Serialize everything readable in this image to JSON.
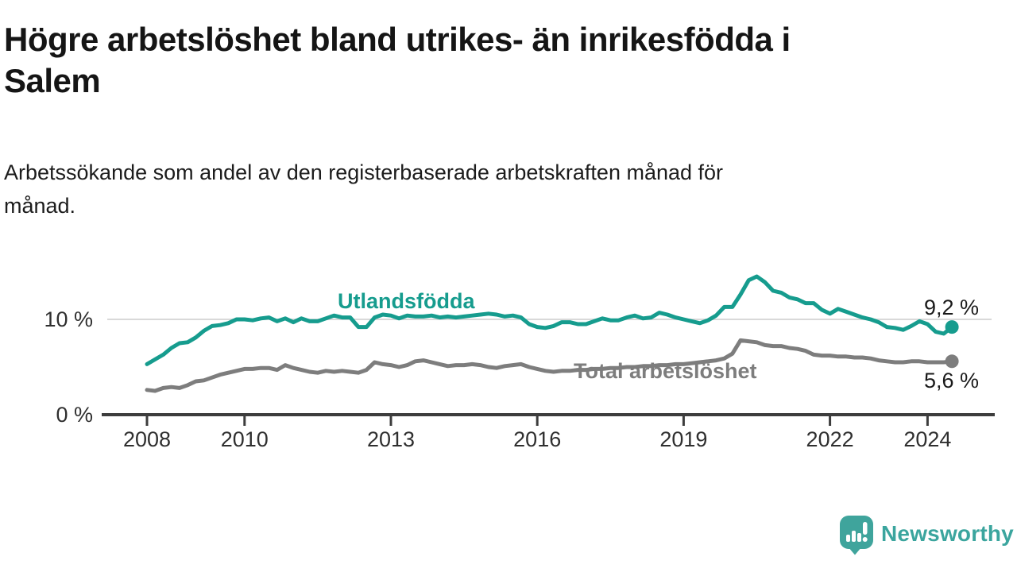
{
  "chart_data": {
    "type": "line",
    "title": "Högre arbetslöshet bland utrikes- än inrikesfödda i Salem",
    "title_lines": [
      "Högre arbetslöshet bland utrikes- än inrikesfödda i",
      "Salem"
    ],
    "subtitle": "Arbetssökande som andel av den registerbaserade arbetskraften månad för månad.",
    "subtitle_lines": [
      "Arbetssökande som andel av den registerbaserade arbetskraften månad för",
      "månad."
    ],
    "x_start_year": 2008.0,
    "x_step_years": 0.16667,
    "x_axis": {
      "ticks": [
        2008,
        2010,
        2013,
        2016,
        2019,
        2022,
        2024
      ],
      "range": [
        2007.1,
        2025.4
      ]
    },
    "y_axis": {
      "unit": "%",
      "ticks": [
        {
          "value": 10,
          "label": "10 %"
        },
        {
          "value": 0,
          "label": "0 %"
        }
      ],
      "range": [
        0,
        16.3
      ]
    },
    "grid": {
      "horizontal_at": [
        10
      ]
    },
    "legend": "inline-labels",
    "series": [
      {
        "name": "Utlandsfödda",
        "color": "#169c8e",
        "end_label": "9,2 %",
        "end_value": 9.2,
        "values": [
          5.3,
          5.8,
          6.3,
          7.0,
          7.5,
          7.6,
          8.1,
          8.8,
          9.3,
          9.4,
          9.6,
          10.0,
          10.0,
          9.9,
          10.1,
          10.2,
          9.8,
          10.1,
          9.7,
          10.1,
          9.8,
          9.8,
          10.1,
          10.4,
          10.2,
          10.2,
          9.2,
          9.2,
          10.2,
          10.5,
          10.4,
          10.1,
          10.4,
          10.3,
          10.3,
          10.4,
          10.2,
          10.3,
          10.2,
          10.3,
          10.4,
          10.5,
          10.6,
          10.5,
          10.3,
          10.4,
          10.2,
          9.5,
          9.2,
          9.1,
          9.3,
          9.7,
          9.7,
          9.5,
          9.5,
          9.8,
          10.1,
          9.9,
          9.9,
          10.2,
          10.4,
          10.1,
          10.2,
          10.7,
          10.5,
          10.2,
          10.0,
          9.8,
          9.6,
          9.9,
          10.4,
          11.3,
          11.3,
          12.6,
          14.1,
          14.5,
          13.9,
          13.0,
          12.8,
          12.3,
          12.1,
          11.7,
          11.7,
          11.0,
          10.6,
          11.1,
          10.8,
          10.5,
          10.2,
          10.0,
          9.7,
          9.2,
          9.1,
          8.9,
          9.3,
          9.8,
          9.5,
          8.7,
          8.5,
          9.2
        ]
      },
      {
        "name": "Total arbetslöshet",
        "color": "#7d7d7d",
        "end_label": "5,6 %",
        "end_value": 5.6,
        "values": [
          2.6,
          2.5,
          2.8,
          2.9,
          2.8,
          3.1,
          3.5,
          3.6,
          3.9,
          4.2,
          4.4,
          4.6,
          4.8,
          4.8,
          4.9,
          4.9,
          4.7,
          5.2,
          4.9,
          4.7,
          4.5,
          4.4,
          4.6,
          4.5,
          4.6,
          4.5,
          4.4,
          4.7,
          5.5,
          5.3,
          5.2,
          5.0,
          5.2,
          5.6,
          5.7,
          5.5,
          5.3,
          5.1,
          5.2,
          5.2,
          5.3,
          5.2,
          5.0,
          4.9,
          5.1,
          5.2,
          5.3,
          5.0,
          4.8,
          4.6,
          4.5,
          4.6,
          4.6,
          4.7,
          4.7,
          4.8,
          4.8,
          4.9,
          4.9,
          5.0,
          5.0,
          5.1,
          5.1,
          5.2,
          5.2,
          5.3,
          5.3,
          5.4,
          5.5,
          5.6,
          5.7,
          5.9,
          6.4,
          7.8,
          7.7,
          7.6,
          7.3,
          7.2,
          7.2,
          7.0,
          6.9,
          6.7,
          6.3,
          6.2,
          6.2,
          6.1,
          6.1,
          6.0,
          6.0,
          5.9,
          5.7,
          5.6,
          5.5,
          5.5,
          5.6,
          5.6,
          5.5,
          5.5,
          5.5,
          5.6
        ]
      }
    ],
    "colors": {
      "grid": "#d9d9d9",
      "axis": "#3d3d3d",
      "value_label": "#1a1a1a"
    }
  },
  "branding": {
    "wordmark": "Newsworthy",
    "brand_color": "#3ba59e"
  }
}
